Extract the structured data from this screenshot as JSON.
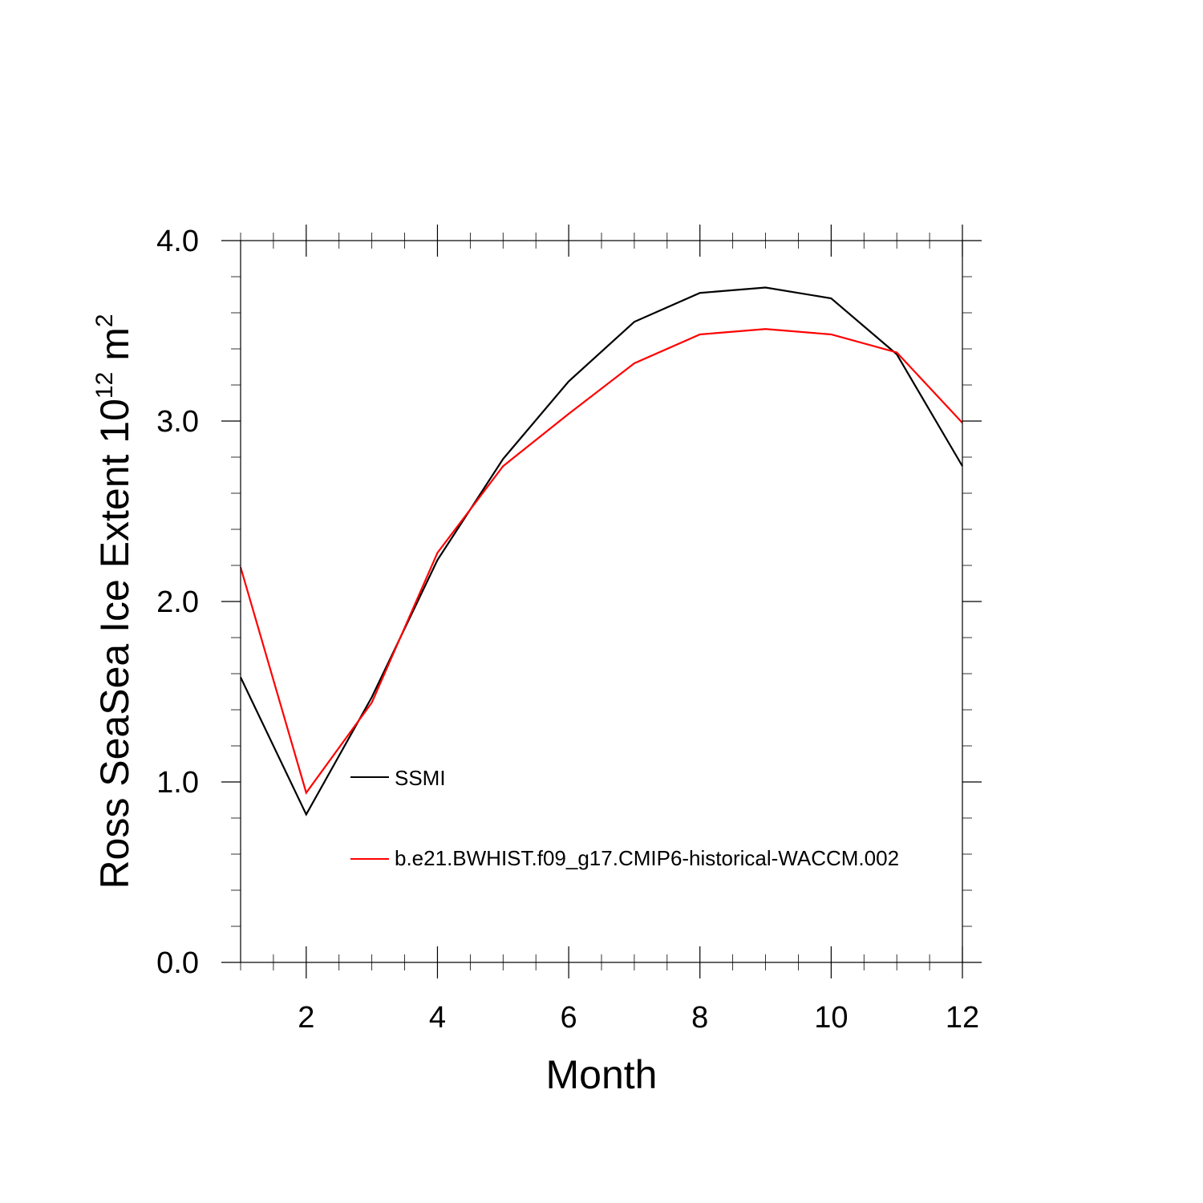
{
  "chart_data": {
    "type": "line",
    "xlabel": "Month",
    "ylabel": {
      "main": "Ross SeaSea Ice Extent 10",
      "exp1": "12",
      "unit": " m",
      "exp2": "2"
    },
    "xlim": [
      1,
      12
    ],
    "ylim": [
      0.0,
      4.0
    ],
    "x_ticks": [
      2,
      4,
      6,
      8,
      10,
      12
    ],
    "x_tick_labels": [
      "2",
      "4",
      "6",
      "8",
      "10",
      "12"
    ],
    "y_ticks": [
      0.0,
      1.0,
      2.0,
      3.0,
      4.0
    ],
    "y_tick_labels": [
      "0.0",
      "1.0",
      "2.0",
      "3.0",
      "4.0"
    ],
    "grid": false,
    "legend_position": "inside-left",
    "x": [
      1,
      2,
      3,
      4,
      5,
      6,
      7,
      8,
      9,
      10,
      11,
      12
    ],
    "series": [
      {
        "name": "SSMI",
        "color": "#000000",
        "values": [
          1.58,
          0.82,
          1.47,
          2.23,
          2.79,
          3.22,
          3.55,
          3.71,
          3.74,
          3.68,
          3.37,
          2.75
        ]
      },
      {
        "name": "b.e21.BWHIST.f09_g17.CMIP6-historical-WACCM.002",
        "color": "#ff0000",
        "values": [
          2.19,
          0.94,
          1.44,
          2.27,
          2.75,
          3.04,
          3.32,
          3.48,
          3.51,
          3.48,
          3.38,
          2.99
        ]
      }
    ]
  }
}
